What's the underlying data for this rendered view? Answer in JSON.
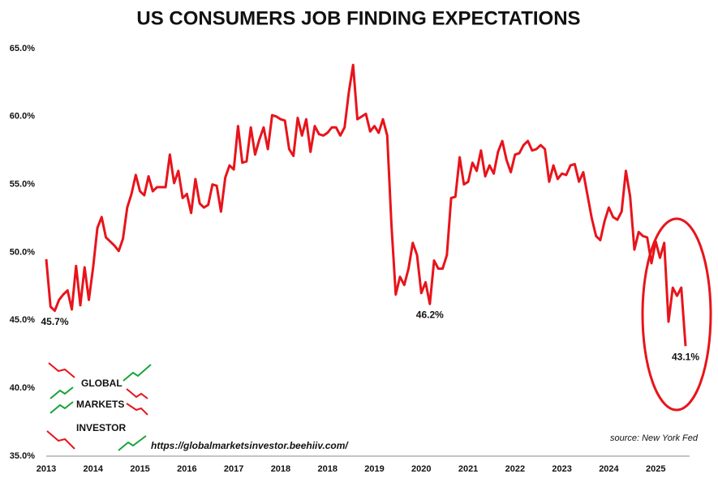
{
  "chart_data": {
    "type": "line",
    "title": "US CONSUMERS JOB FINDING EXPECTATIONS",
    "source": "source: New York Fed",
    "url": "https://globalmarketsinvestor.beehiiv.com/",
    "logo": [
      "GLOBAL",
      "MARKETS",
      "INVESTOR"
    ],
    "color": "#e8141b",
    "grid": false,
    "ylim": [
      35,
      65
    ],
    "yticks": [
      {
        "value": 35,
        "label": "35.0%"
      },
      {
        "value": 40,
        "label": "40.0%"
      },
      {
        "value": 45,
        "label": "45.0%"
      },
      {
        "value": 50,
        "label": "50.0%"
      },
      {
        "value": 55,
        "label": "55.0%"
      },
      {
        "value": 60,
        "label": "60.0%"
      },
      {
        "value": 65,
        "label": "65.0%"
      }
    ],
    "categories": [
      "2013",
      null,
      null,
      null,
      null,
      null,
      null,
      null,
      null,
      null,
      null,
      "2014",
      null,
      null,
      null,
      null,
      null,
      null,
      null,
      null,
      null,
      null,
      "2015",
      null,
      null,
      null,
      null,
      null,
      null,
      null,
      null,
      null,
      null,
      "2016",
      null,
      null,
      null,
      null,
      null,
      null,
      null,
      null,
      null,
      null,
      "2017",
      null,
      null,
      null,
      null,
      null,
      null,
      null,
      null,
      null,
      null,
      "2018",
      null,
      null,
      null,
      null,
      null,
      null,
      null,
      null,
      null,
      null,
      "2018",
      null,
      null,
      null,
      null,
      null,
      null,
      null,
      null,
      null,
      null,
      "2019",
      null,
      null,
      null,
      null,
      null,
      null,
      null,
      null,
      null,
      null,
      "2020",
      null,
      null,
      null,
      null,
      null,
      null,
      null,
      null,
      null,
      null,
      "2021",
      null,
      null,
      null,
      null,
      null,
      null,
      null,
      null,
      null,
      null,
      "2022",
      null,
      null,
      null,
      null,
      null,
      null,
      null,
      null,
      null,
      null,
      "2023",
      null,
      null,
      null,
      null,
      null,
      null,
      null,
      null,
      null,
      null,
      "2024",
      null,
      null,
      null,
      null,
      null,
      null,
      null,
      null,
      null,
      null,
      "2025",
      null,
      null,
      null,
      null,
      null,
      null,
      null
    ],
    "values": [
      49.5,
      46.0,
      45.7,
      46.5,
      46.9,
      47.2,
      45.8,
      49.0,
      46.1,
      48.9,
      46.5,
      48.9,
      51.8,
      52.6,
      51.1,
      50.8,
      50.5,
      50.1,
      51.0,
      53.3,
      54.3,
      55.7,
      54.5,
      54.2,
      55.6,
      54.5,
      54.8,
      54.8,
      54.8,
      57.2,
      55.1,
      56.0,
      54.0,
      54.3,
      52.9,
      55.4,
      53.6,
      53.3,
      53.5,
      55.0,
      54.9,
      53.0,
      55.5,
      56.4,
      56.1,
      59.3,
      56.6,
      56.7,
      59.2,
      57.2,
      58.3,
      59.2,
      57.6,
      60.1,
      60.0,
      59.8,
      59.7,
      57.6,
      57.1,
      59.9,
      58.6,
      59.8,
      57.4,
      59.3,
      58.7,
      58.6,
      58.8,
      59.2,
      59.2,
      58.6,
      59.2,
      61.8,
      63.8,
      59.8,
      60.0,
      60.2,
      58.9,
      59.3,
      58.8,
      59.8,
      58.6,
      52.0,
      46.9,
      48.2,
      47.6,
      48.8,
      50.7,
      49.8,
      47.0,
      47.8,
      46.2,
      49.4,
      48.8,
      48.8,
      49.8,
      54.0,
      54.1,
      57.0,
      55.0,
      55.2,
      56.6,
      56.0,
      57.5,
      55.6,
      56.4,
      55.8,
      57.4,
      58.2,
      56.8,
      55.9,
      57.2,
      57.3,
      57.9,
      58.2,
      57.5,
      57.6,
      57.9,
      57.6,
      55.2,
      56.4,
      55.4,
      55.8,
      55.7,
      56.4,
      56.5,
      55.2,
      55.9,
      54.2,
      52.5,
      51.2,
      50.9,
      52.3,
      53.3,
      52.6,
      52.4,
      53.0,
      56.0,
      54.1,
      50.2,
      51.5,
      51.2,
      51.1,
      49.2,
      50.8,
      49.6,
      50.7,
      44.9,
      47.4,
      46.8,
      47.4,
      43.1
    ],
    "value_labels": [
      null,
      null,
      "45.7%",
      null,
      null,
      null,
      null,
      null,
      null,
      null,
      null,
      null,
      null,
      null,
      null,
      null,
      null,
      null,
      null,
      null,
      null,
      null,
      null,
      null,
      null,
      null,
      null,
      null,
      null,
      null,
      null,
      null,
      null,
      null,
      null,
      null,
      null,
      null,
      null,
      null,
      null,
      null,
      null,
      null,
      null,
      null,
      null,
      null,
      null,
      null,
      null,
      null,
      null,
      null,
      null,
      null,
      null,
      null,
      null,
      null,
      null,
      null,
      null,
      null,
      null,
      null,
      null,
      null,
      null,
      null,
      null,
      null,
      null,
      null,
      null,
      null,
      null,
      null,
      null,
      null,
      null,
      null,
      null,
      null,
      null,
      null,
      null,
      null,
      null,
      null,
      "46.2%",
      null,
      null,
      null,
      null,
      null,
      null,
      null,
      null,
      null,
      null,
      null,
      null,
      null,
      null,
      null,
      null,
      null,
      null,
      null,
      null,
      null,
      null,
      null,
      null,
      null,
      null,
      null,
      null,
      null,
      null,
      null,
      null,
      null,
      null,
      null,
      null,
      null,
      null,
      null,
      null,
      null,
      null,
      null,
      null,
      null,
      null,
      null,
      null,
      null,
      null,
      null,
      null,
      null,
      null,
      null,
      null,
      null,
      null,
      null,
      "43.1%"
    ]
  }
}
